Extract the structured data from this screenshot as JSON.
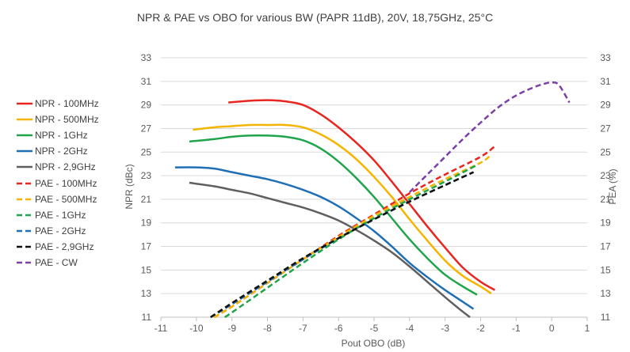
{
  "chart_data": {
    "type": "line",
    "title": "NPR & PAE vs OBO for various BW (PAPR 11dB), 20V, 18,75GHz, 25°C",
    "xlabel": "Pout OBO (dB)",
    "ylabel": "NPR (dBc)",
    "y2label": "PEA (%)",
    "xlim": [
      -11,
      1
    ],
    "ylim": [
      11,
      33
    ],
    "y2lim": [
      11,
      33
    ],
    "xticks": [
      "-11",
      "-10",
      "-9",
      "-8",
      "-7",
      "-6",
      "-5",
      "-4",
      "-3",
      "-2",
      "-1",
      "0",
      "1"
    ],
    "yticks": [
      "11",
      "13",
      "15",
      "17",
      "19",
      "21",
      "23",
      "25",
      "27",
      "29",
      "31",
      "33"
    ],
    "grid": "horizontal",
    "legend_position": "left",
    "series": [
      {
        "name": "NPR - 100MHz",
        "axis": "left",
        "style": "solid",
        "color": "#e8251f",
        "x": [
          -9.1,
          -8.5,
          -8,
          -7.5,
          -7,
          -6.5,
          -6,
          -5.5,
          -5,
          -4.5,
          -4,
          -3.5,
          -3,
          -2.5,
          -2,
          -1.6
        ],
        "y": [
          29.2,
          29.35,
          29.4,
          29.3,
          29,
          28.2,
          27.1,
          25.8,
          24.3,
          22.5,
          20.6,
          18.7,
          16.9,
          15.2,
          14,
          13.3
        ]
      },
      {
        "name": "NPR - 500MHz",
        "axis": "left",
        "style": "solid",
        "color": "#f5b400",
        "x": [
          -10.1,
          -9.5,
          -9,
          -8.5,
          -8,
          -7.5,
          -7,
          -6.5,
          -6,
          -5.5,
          -5,
          -4.5,
          -4,
          -3.5,
          -3,
          -2.5,
          -2,
          -1.7
        ],
        "y": [
          26.9,
          27.1,
          27.2,
          27.3,
          27.3,
          27.3,
          27.1,
          26.5,
          25.6,
          24.4,
          22.9,
          21.2,
          19.3,
          17.5,
          15.8,
          14.5,
          13.6,
          13
        ]
      },
      {
        "name": "NPR - 1GHz",
        "axis": "left",
        "style": "solid",
        "color": "#1fa44a",
        "x": [
          -10.2,
          -9.5,
          -9,
          -8.5,
          -8,
          -7.5,
          -7,
          -6.5,
          -6,
          -5.5,
          -5,
          -4.5,
          -4,
          -3.5,
          -3,
          -2.5,
          -2.1
        ],
        "y": [
          25.9,
          26.1,
          26.3,
          26.4,
          26.4,
          26.3,
          26,
          25.3,
          24.2,
          22.8,
          21.2,
          19.4,
          17.6,
          16,
          14.6,
          13.6,
          12.9
        ]
      },
      {
        "name": "NPR - 2GHz",
        "axis": "left",
        "style": "solid",
        "color": "#1f6fb6",
        "x": [
          -10.6,
          -10,
          -9.5,
          -9,
          -8.5,
          -8,
          -7.5,
          -7,
          -6.5,
          -6,
          -5.5,
          -5,
          -4.5,
          -4,
          -3.5,
          -3,
          -2.5,
          -2.2
        ],
        "y": [
          23.7,
          23.7,
          23.6,
          23.3,
          23,
          22.7,
          22.3,
          21.8,
          21.2,
          20.4,
          19.4,
          18.3,
          17,
          15.6,
          14.4,
          13.3,
          12.3,
          11.7
        ]
      },
      {
        "name": "NPR - 2,9GHz",
        "axis": "left",
        "style": "solid",
        "color": "#5f5f5f",
        "x": [
          -10.2,
          -9.5,
          -9,
          -8.5,
          -8,
          -7.5,
          -7,
          -6.5,
          -6,
          -5.5,
          -5,
          -4.5,
          -4,
          -3.5,
          -3,
          -2.6,
          -2.3
        ],
        "y": [
          22.4,
          22.1,
          21.8,
          21.5,
          21.1,
          20.7,
          20.3,
          19.8,
          19.2,
          18.4,
          17.5,
          16.5,
          15.3,
          14,
          12.7,
          11.7,
          11
        ]
      },
      {
        "name": "PAE - 100MHz",
        "axis": "right",
        "style": "dashed",
        "color": "#e8251f",
        "x": [
          -9.5,
          -9,
          -8,
          -7,
          -6,
          -5,
          -4,
          -3,
          -2,
          -1.6
        ],
        "y": [
          11,
          11.9,
          13.9,
          15.9,
          17.9,
          19.7,
          21.5,
          23.1,
          24.6,
          25.5
        ]
      },
      {
        "name": "PAE - 500MHz",
        "axis": "right",
        "style": "dashed",
        "color": "#f5b400",
        "x": [
          -9.5,
          -9,
          -8,
          -7,
          -6,
          -5,
          -4,
          -3,
          -2,
          -1.7
        ],
        "y": [
          11,
          11.9,
          13.9,
          15.9,
          17.8,
          19.6,
          21.2,
          22.7,
          24.1,
          24.8
        ]
      },
      {
        "name": "PAE - 1GHz",
        "axis": "right",
        "style": "dashed",
        "color": "#1fa44a",
        "x": [
          -9.2,
          -9,
          -8,
          -7,
          -6,
          -5,
          -4,
          -3,
          -2.1
        ],
        "y": [
          11,
          11.4,
          13.5,
          15.6,
          17.6,
          19.4,
          21,
          22.5,
          23.9
        ]
      },
      {
        "name": "PAE - 2GHz",
        "axis": "right",
        "style": "dashed",
        "color": "#1f6fb6",
        "x": [
          -9.6,
          -9,
          -8,
          -7,
          -6,
          -5,
          -4,
          -3,
          -2.2
        ],
        "y": [
          11,
          12.1,
          14,
          15.9,
          17.7,
          19.3,
          20.8,
          22.2,
          23.3
        ]
      },
      {
        "name": "PAE - 2,9GHz",
        "axis": "right",
        "style": "dashed",
        "color": "#111111",
        "x": [
          -9.6,
          -9,
          -8,
          -7,
          -6,
          -5,
          -4,
          -3,
          -2.2
        ],
        "y": [
          11,
          12.2,
          14.1,
          16,
          17.7,
          19.3,
          20.8,
          22.2,
          23.3
        ]
      },
      {
        "name": "PAE - CW",
        "axis": "right",
        "style": "dashed",
        "color": "#7b3fa6",
        "x": [
          -4,
          -3.5,
          -3,
          -2.5,
          -2,
          -1.5,
          -1,
          -0.5,
          -0.2,
          0,
          0.2,
          0.5
        ],
        "y": [
          21.6,
          23.1,
          24.6,
          26.1,
          27.5,
          28.8,
          29.8,
          30.5,
          30.8,
          30.9,
          30.7,
          29.2
        ]
      }
    ]
  }
}
